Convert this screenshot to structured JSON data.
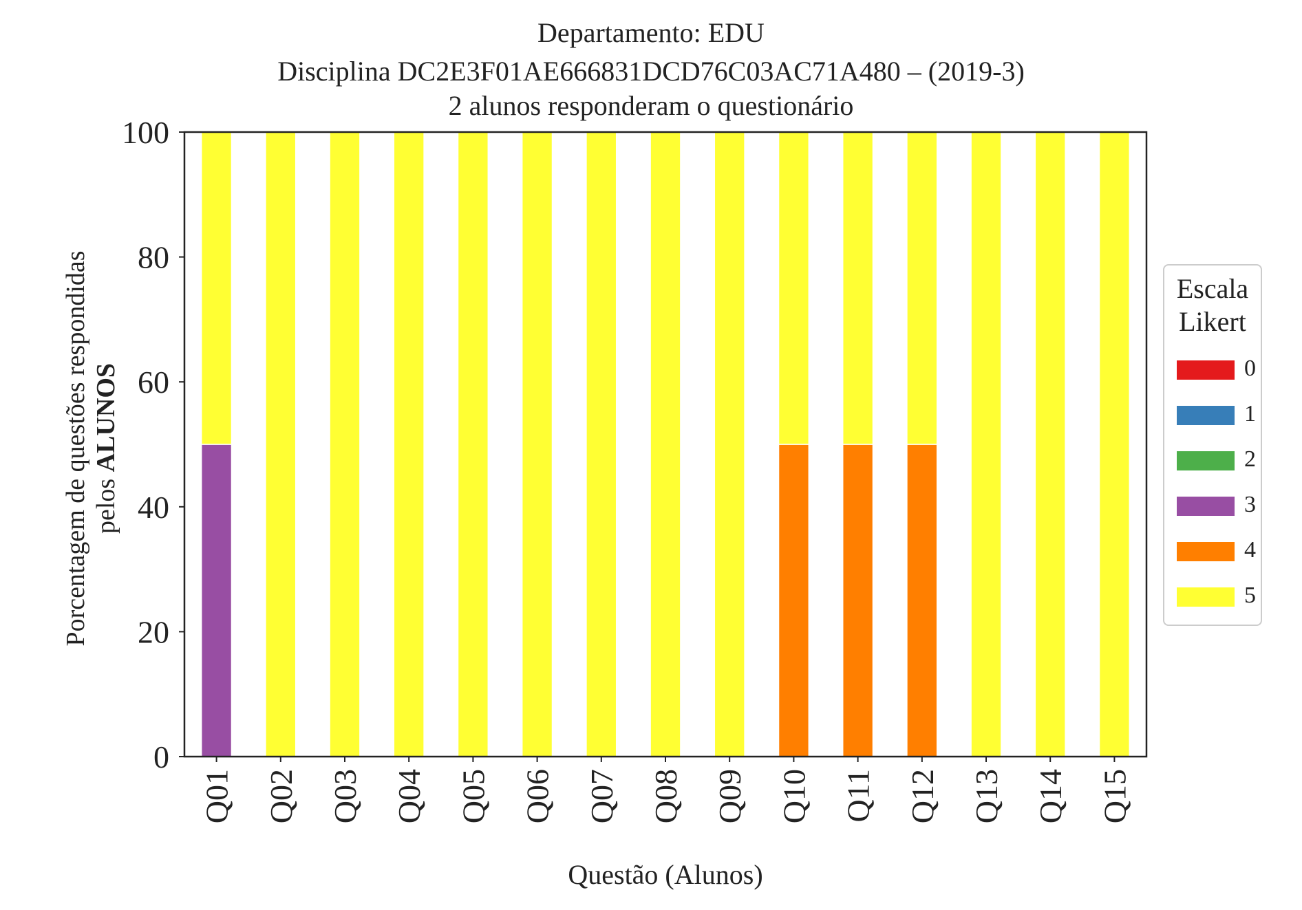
{
  "chart_data": {
    "type": "bar",
    "stacked": true,
    "title_lines": [
      "Departamento: EDU",
      "Disciplina DC2E3F01AE666831DCD76C03AC71A480 – (2019-3)",
      "2 alunos responderam o questionário"
    ],
    "xlabel": "Questão (Alunos)",
    "ylabel_line1": "Porcentagem de questões respondidas",
    "ylabel_line2_prefix": "pelos ",
    "ylabel_line2_bold": "ALUNOS",
    "ylim": [
      0,
      100
    ],
    "yticks": [
      "0",
      "20",
      "40",
      "60",
      "80",
      "100"
    ],
    "categories": [
      "Q01",
      "Q02",
      "Q03",
      "Q04",
      "Q05",
      "Q06",
      "Q07",
      "Q08",
      "Q09",
      "Q10",
      "Q11",
      "Q12",
      "Q13",
      "Q14",
      "Q15"
    ],
    "legend_title_lines": [
      "Escala",
      "Likert"
    ],
    "legend_placement": "right, outside plot",
    "grid": false,
    "series": [
      {
        "name": "0",
        "color": "#e41a1c",
        "values": [
          0,
          0,
          0,
          0,
          0,
          0,
          0,
          0,
          0,
          0,
          0,
          0,
          0,
          0,
          0
        ]
      },
      {
        "name": "1",
        "color": "#377eb8",
        "values": [
          0,
          0,
          0,
          0,
          0,
          0,
          0,
          0,
          0,
          0,
          0,
          0,
          0,
          0,
          0
        ]
      },
      {
        "name": "2",
        "color": "#4daf4a",
        "values": [
          0,
          0,
          0,
          0,
          0,
          0,
          0,
          0,
          0,
          0,
          0,
          0,
          0,
          0,
          0
        ]
      },
      {
        "name": "3",
        "color": "#984ea3",
        "values": [
          50,
          0,
          0,
          0,
          0,
          0,
          0,
          0,
          0,
          0,
          0,
          0,
          0,
          0,
          0
        ]
      },
      {
        "name": "4",
        "color": "#ff7f00",
        "values": [
          0,
          0,
          0,
          0,
          0,
          0,
          0,
          0,
          0,
          50,
          50,
          50,
          0,
          0,
          0
        ]
      },
      {
        "name": "5",
        "color": "#ffff33",
        "values": [
          50,
          100,
          100,
          100,
          100,
          100,
          100,
          100,
          100,
          50,
          50,
          50,
          100,
          100,
          100
        ]
      }
    ]
  }
}
